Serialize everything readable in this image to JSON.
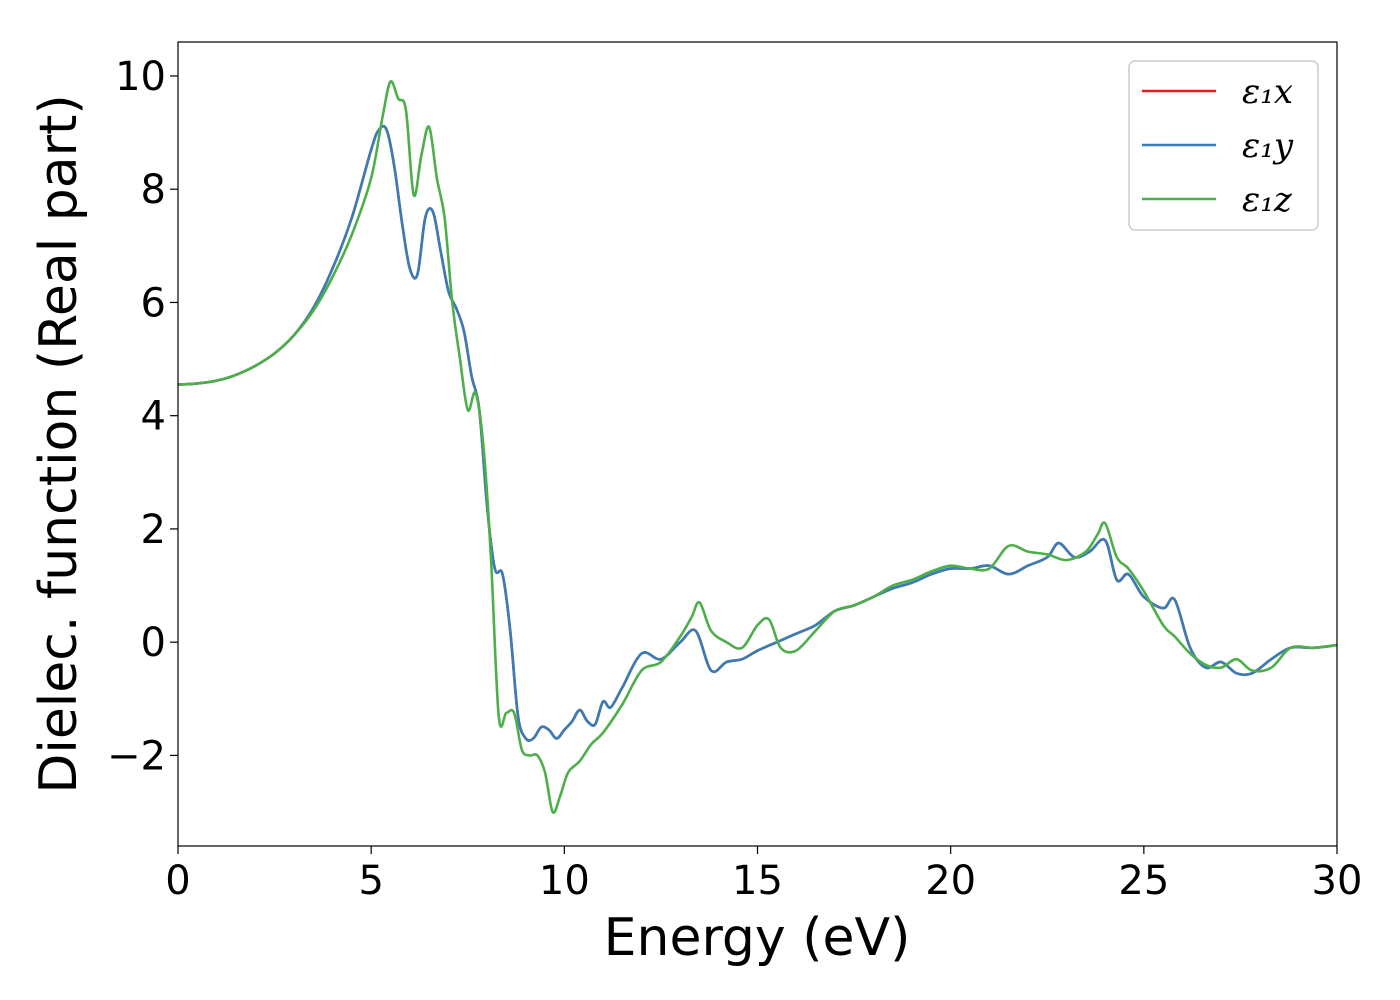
{
  "chart_data": {
    "type": "line",
    "title": "",
    "xlabel": "Energy (eV)",
    "ylabel": "Dielec. function (Real part)",
    "xlim": [
      0,
      30
    ],
    "ylim": [
      -3.6,
      10.6
    ],
    "xticks": [
      0,
      5,
      10,
      15,
      20,
      25,
      30
    ],
    "xtick_labels": [
      "0",
      "5",
      "10",
      "15",
      "20",
      "25",
      "30"
    ],
    "yticks": [
      -2,
      0,
      2,
      4,
      6,
      8,
      10
    ],
    "ytick_labels": [
      "−2",
      "0",
      "2",
      "4",
      "6",
      "8",
      "10"
    ],
    "grid": false,
    "legend_position": "top-right",
    "series": [
      {
        "name": "ε₁x",
        "color": "#e41a1c",
        "x": [
          0,
          0.5,
          1,
          1.5,
          2,
          2.5,
          3,
          3.5,
          4,
          4.5,
          5,
          5.2,
          5.4,
          5.6,
          5.8,
          6,
          6.2,
          6.4,
          6.6,
          6.8,
          7,
          7.2,
          7.4,
          7.6,
          7.8,
          8,
          8.2,
          8.4,
          8.6,
          8.8,
          9,
          9.2,
          9.4,
          9.6,
          9.8,
          10,
          10.2,
          10.4,
          10.6,
          10.8,
          11,
          11.2,
          11.5,
          12,
          12.5,
          13,
          13.4,
          13.8,
          14.2,
          14.6,
          15,
          15.5,
          16,
          16.5,
          17,
          17.5,
          18,
          18.5,
          19,
          19.5,
          20,
          20.5,
          21,
          21.5,
          22,
          22.5,
          22.8,
          23.2,
          23.6,
          24,
          24.3,
          24.6,
          25,
          25.5,
          25.8,
          26.2,
          26.6,
          27,
          27.4,
          27.8,
          28.3,
          28.8,
          29.4,
          30
        ],
        "y": [
          4.55,
          4.57,
          4.62,
          4.72,
          4.88,
          5.1,
          5.42,
          5.9,
          6.6,
          7.5,
          8.7,
          9.05,
          9.05,
          8.4,
          7.4,
          6.6,
          6.5,
          7.5,
          7.6,
          6.9,
          6.2,
          5.9,
          5.5,
          4.7,
          4.1,
          2.4,
          1.3,
          1.2,
          0.2,
          -1.3,
          -1.7,
          -1.7,
          -1.5,
          -1.55,
          -1.7,
          -1.55,
          -1.4,
          -1.2,
          -1.4,
          -1.45,
          -1.05,
          -1.15,
          -0.8,
          -0.2,
          -0.3,
          0.0,
          0.2,
          -0.5,
          -0.35,
          -0.3,
          -0.15,
          0.0,
          0.15,
          0.3,
          0.55,
          0.65,
          0.8,
          0.95,
          1.05,
          1.2,
          1.3,
          1.3,
          1.35,
          1.2,
          1.35,
          1.5,
          1.75,
          1.5,
          1.6,
          1.8,
          1.1,
          1.2,
          0.8,
          0.6,
          0.75,
          -0.1,
          -0.45,
          -0.35,
          -0.55,
          -0.55,
          -0.3,
          -0.1,
          -0.1,
          -0.05
        ]
      },
      {
        "name": "ε₁y",
        "color": "#377eb8",
        "x": [
          0,
          0.5,
          1,
          1.5,
          2,
          2.5,
          3,
          3.5,
          4,
          4.5,
          5,
          5.2,
          5.4,
          5.6,
          5.8,
          6,
          6.2,
          6.4,
          6.6,
          6.8,
          7,
          7.2,
          7.4,
          7.6,
          7.8,
          8,
          8.2,
          8.4,
          8.6,
          8.8,
          9,
          9.2,
          9.4,
          9.6,
          9.8,
          10,
          10.2,
          10.4,
          10.6,
          10.8,
          11,
          11.2,
          11.5,
          12,
          12.5,
          13,
          13.4,
          13.8,
          14.2,
          14.6,
          15,
          15.5,
          16,
          16.5,
          17,
          17.5,
          18,
          18.5,
          19,
          19.5,
          20,
          20.5,
          21,
          21.5,
          22,
          22.5,
          22.8,
          23.2,
          23.6,
          24,
          24.3,
          24.6,
          25,
          25.5,
          25.8,
          26.2,
          26.6,
          27,
          27.4,
          27.8,
          28.3,
          28.8,
          29.4,
          30
        ],
        "y": [
          4.55,
          4.57,
          4.62,
          4.72,
          4.88,
          5.1,
          5.42,
          5.9,
          6.6,
          7.5,
          8.7,
          9.05,
          9.05,
          8.4,
          7.4,
          6.6,
          6.5,
          7.5,
          7.6,
          6.9,
          6.2,
          5.9,
          5.5,
          4.7,
          4.1,
          2.4,
          1.3,
          1.2,
          0.2,
          -1.3,
          -1.7,
          -1.7,
          -1.5,
          -1.55,
          -1.7,
          -1.55,
          -1.4,
          -1.2,
          -1.4,
          -1.45,
          -1.05,
          -1.15,
          -0.8,
          -0.2,
          -0.3,
          0.0,
          0.2,
          -0.5,
          -0.35,
          -0.3,
          -0.15,
          0.0,
          0.15,
          0.3,
          0.55,
          0.65,
          0.8,
          0.95,
          1.05,
          1.2,
          1.3,
          1.3,
          1.35,
          1.2,
          1.35,
          1.5,
          1.75,
          1.5,
          1.6,
          1.8,
          1.1,
          1.2,
          0.8,
          0.6,
          0.75,
          -0.1,
          -0.45,
          -0.35,
          -0.55,
          -0.55,
          -0.3,
          -0.1,
          -0.1,
          -0.05
        ]
      },
      {
        "name": "ε₁z",
        "color": "#4daf4a",
        "x": [
          0,
          0.5,
          1,
          1.5,
          2,
          2.5,
          3,
          3.5,
          4,
          4.5,
          5,
          5.3,
          5.5,
          5.7,
          5.9,
          6.1,
          6.3,
          6.5,
          6.7,
          6.9,
          7.1,
          7.3,
          7.5,
          7.7,
          7.9,
          8.1,
          8.3,
          8.5,
          8.7,
          8.9,
          9.1,
          9.3,
          9.5,
          9.7,
          9.9,
          10.1,
          10.4,
          10.7,
          11,
          11.5,
          12,
          12.5,
          13,
          13.3,
          13.5,
          13.8,
          14.2,
          14.6,
          15,
          15.3,
          15.6,
          16,
          16.5,
          17,
          17.5,
          18,
          18.5,
          19,
          19.5,
          20,
          20.5,
          21,
          21.5,
          22,
          22.5,
          23,
          23.5,
          23.8,
          24,
          24.3,
          24.6,
          25,
          25.5,
          25.8,
          26.2,
          26.6,
          27,
          27.4,
          27.8,
          28.3,
          28.8,
          29.4,
          30
        ],
        "y": [
          4.55,
          4.57,
          4.62,
          4.72,
          4.88,
          5.1,
          5.42,
          5.85,
          6.45,
          7.2,
          8.2,
          9.3,
          9.9,
          9.6,
          9.4,
          7.9,
          8.6,
          9.1,
          8.2,
          7.5,
          6.0,
          5.0,
          4.1,
          4.4,
          3.5,
          1.5,
          -1.3,
          -1.25,
          -1.25,
          -1.9,
          -2.0,
          -2.0,
          -2.3,
          -3.0,
          -2.7,
          -2.3,
          -2.1,
          -1.8,
          -1.6,
          -1.1,
          -0.5,
          -0.35,
          0.1,
          0.45,
          0.7,
          0.2,
          0.0,
          -0.1,
          0.3,
          0.4,
          -0.1,
          -0.15,
          0.2,
          0.55,
          0.65,
          0.8,
          1.0,
          1.1,
          1.25,
          1.35,
          1.3,
          1.3,
          1.7,
          1.6,
          1.55,
          1.45,
          1.6,
          1.9,
          2.1,
          1.5,
          1.3,
          0.9,
          0.3,
          0.1,
          -0.2,
          -0.4,
          -0.45,
          -0.3,
          -0.5,
          -0.45,
          -0.1,
          -0.1,
          -0.05
        ]
      }
    ]
  }
}
